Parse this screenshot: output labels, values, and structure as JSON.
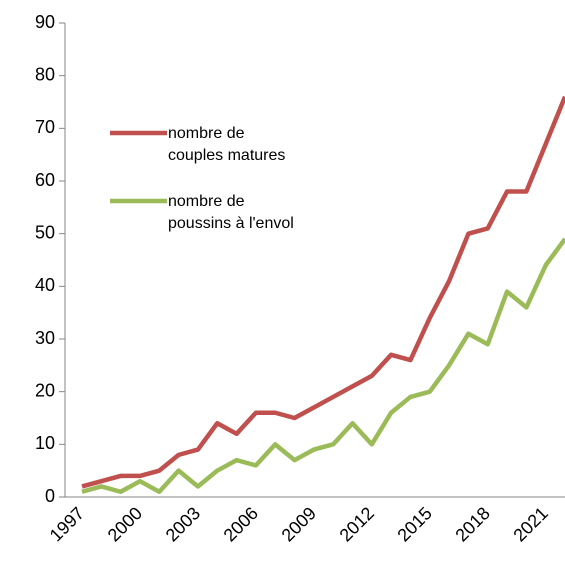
{
  "chart_data": {
    "type": "line",
    "categories": [
      "1997",
      null,
      null,
      "2000",
      null,
      null,
      "2003",
      null,
      null,
      "2006",
      null,
      null,
      "2009",
      null,
      null,
      "2012",
      null,
      null,
      "2015",
      null,
      null,
      "2018",
      null,
      null,
      "2021",
      null
    ],
    "series": [
      {
        "name": "nombre de couples matures",
        "color": "#c0504d",
        "values": [
          2,
          3,
          4,
          4,
          5,
          8,
          9,
          14,
          12,
          16,
          16,
          15,
          17,
          19,
          21,
          23,
          27,
          26,
          34,
          41,
          50,
          51,
          58,
          58,
          67,
          76
        ]
      },
      {
        "name": "nombre de poussins à l'envol",
        "color": "#9bbb59",
        "values": [
          1,
          2,
          1,
          3,
          1,
          5,
          2,
          5,
          7,
          6,
          10,
          7,
          9,
          10,
          14,
          10,
          16,
          19,
          20,
          25,
          31,
          29,
          39,
          36,
          44,
          49
        ]
      }
    ],
    "ylim": [
      0,
      90
    ],
    "yticks": [
      0,
      10,
      20,
      30,
      40,
      50,
      60,
      70,
      80,
      90
    ],
    "grid": false
  }
}
